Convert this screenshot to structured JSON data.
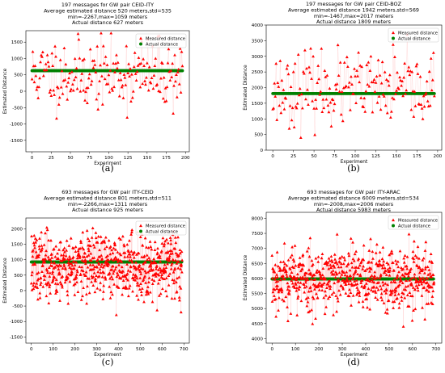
{
  "legend_labels": {
    "measured": "Measured distance",
    "actual": "Actual distance"
  },
  "colors": {
    "measured": "#ff0000",
    "actual": "#008000"
  },
  "chart_data": [
    {
      "id": "a",
      "type": "scatter",
      "caption": "(a)",
      "title": [
        "197 messages for GW pair CEID-ITY",
        "Average estimated distance 520 meters,std=535",
        "min=-2267,max=1059 meters",
        "Actual distance 627 meters"
      ],
      "xlabel": "Experiment",
      "ylabel": "Estimated Distance",
      "xlim": [
        -8,
        205
      ],
      "ylim": [
        -1850,
        1850
      ],
      "xticks": [
        0,
        25,
        50,
        75,
        100,
        125,
        150,
        175,
        200
      ],
      "yticks": [
        -1500,
        -1000,
        -500,
        0,
        500,
        1000,
        1500
      ],
      "legend_position": "top-right",
      "n": 197,
      "mean": 520,
      "std": 535,
      "min": -2267,
      "max": 1059,
      "actual": 627,
      "seed": 11,
      "series": [
        {
          "name": "Measured distance"
        },
        {
          "name": "Actual distance",
          "value": 627
        }
      ]
    },
    {
      "id": "b",
      "type": "scatter",
      "caption": "(b)",
      "title": [
        "197 messages for GW pair CEID-BOZ",
        "Average estimated distance 1942 meters,std=569",
        "min=-1467,max=2017 meters",
        "Actual distance 1809 meters"
      ],
      "xlabel": "Experiment",
      "ylabel": "Estimated Distance",
      "xlim": [
        -8,
        205
      ],
      "ylim": [
        0,
        4000
      ],
      "xticks": [
        0,
        25,
        50,
        75,
        100,
        125,
        150,
        175,
        200
      ],
      "yticks": [
        0,
        500,
        1000,
        1500,
        2000,
        2500,
        3000,
        3500,
        4000
      ],
      "legend_position": "top-right",
      "n": 197,
      "mean": 1942,
      "std": 569,
      "min": -1467,
      "max": 2017,
      "actual": 1809,
      "seed": 23,
      "series": [
        {
          "name": "Measured distance"
        },
        {
          "name": "Actual distance",
          "value": 1809
        }
      ]
    },
    {
      "id": "c",
      "type": "scatter",
      "caption": "(c)",
      "title": [
        "693 messages for GW pair ITY-CEID",
        "Average estimated distance 801 meters,std=511",
        "min=-2266,max=1311 meters",
        "Actual distance 925 meters"
      ],
      "xlabel": "Experiment",
      "ylabel": "Estimated Distance",
      "xlim": [
        -25,
        725
      ],
      "ylim": [
        -1700,
        2350
      ],
      "xticks": [
        0,
        100,
        200,
        300,
        400,
        500,
        600,
        700
      ],
      "yticks": [
        -1500,
        -1000,
        -500,
        0,
        500,
        1000,
        1500,
        2000
      ],
      "legend_position": "top-right",
      "n": 693,
      "mean": 801,
      "std": 511,
      "min": -2266,
      "max": 1311,
      "actual": 925,
      "seed": 37,
      "series": [
        {
          "name": "Measured distance"
        },
        {
          "name": "Actual distance",
          "value": 925
        }
      ]
    },
    {
      "id": "d",
      "type": "scatter",
      "caption": "(d)",
      "title": [
        "693 messages for GW pair ITY-ARAC",
        "Average estimated distance 6009 meters,std=534",
        "min=-2008,max=2006 meters",
        "Actual distance 5983 meters"
      ],
      "xlabel": "Experiment",
      "ylabel": "Estimated Distance",
      "xlim": [
        -25,
        725
      ],
      "ylim": [
        3850,
        8200
      ],
      "xticks": [
        0,
        100,
        200,
        300,
        400,
        500,
        600,
        700
      ],
      "yticks": [
        4000,
        4500,
        5000,
        5500,
        6000,
        6500,
        7000,
        7500,
        8000
      ],
      "legend_position": "top-right",
      "n": 693,
      "mean": 6009,
      "std": 534,
      "min": -2008,
      "max": 2006,
      "actual": 5983,
      "seed": 53,
      "series": [
        {
          "name": "Measured distance"
        },
        {
          "name": "Actual distance",
          "value": 5983
        }
      ]
    }
  ]
}
